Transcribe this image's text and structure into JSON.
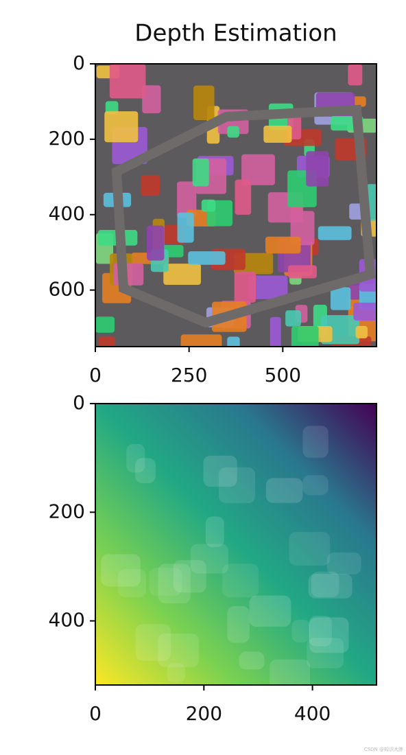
{
  "chart_data": [
    {
      "type": "image",
      "title": "Depth Estimation",
      "xlim": [
        0,
        750
      ],
      "ylim": [
        750,
        0
      ],
      "xticks": [
        0,
        250,
        500
      ],
      "yticks": [
        0,
        200,
        400,
        600
      ]
    },
    {
      "type": "image",
      "xlim": [
        0,
        518
      ],
      "ylim": [
        518,
        0
      ],
      "xticks": [
        0,
        200,
        400
      ],
      "yticks": [
        0,
        200,
        400
      ]
    }
  ],
  "watermark": "CSDN @知识大胖"
}
